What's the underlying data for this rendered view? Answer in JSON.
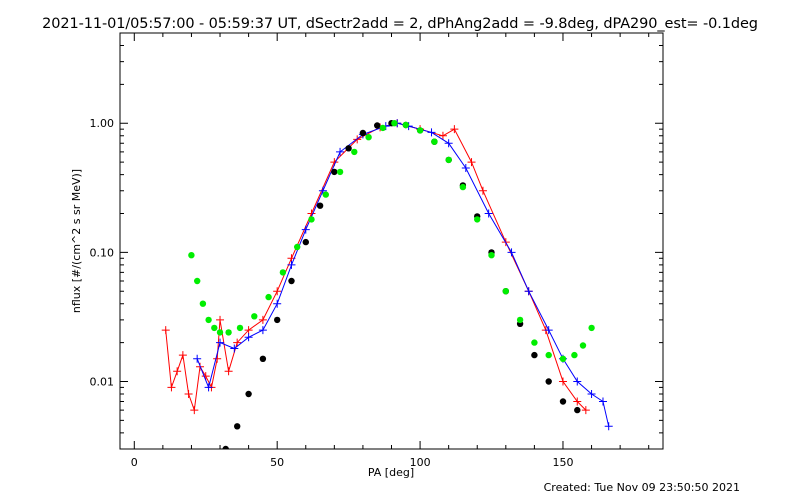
{
  "title": "2021-11-01/05:57:00 - 05:59:37 UT, dSectr2add = 2, dPhAng2add = -9.8deg, dPA290_est= -0.1deg",
  "footer": "Created: Tue Nov 09 23:50:50 2021",
  "colors": {
    "red_series": "#ff0000",
    "blue_series": "#0000ff",
    "black_fit": "#000000",
    "green_fit": "#00ee00"
  },
  "chart_data": {
    "type": "line",
    "title": "2021-11-01/05:57:00 - 05:59:37 UT, dSectr2add = 2, dPhAng2add = -9.8deg, dPA290_est= -0.1deg",
    "xlabel": "PA [deg]",
    "ylabel": "nflux [#/(cm^2 s sr MeV)]",
    "xlim": [
      -5,
      185
    ],
    "ylim": [
      0.003,
      5
    ],
    "yscale": "log",
    "x_ticks": [
      0,
      50,
      100,
      150
    ],
    "x_tick_labels": [
      "0",
      "50",
      "100",
      "150"
    ],
    "y_ticks": [
      0.01,
      0.1,
      1.0
    ],
    "y_tick_labels": [
      "0.01",
      "0.10",
      "1.00"
    ],
    "grid": false,
    "series": [
      {
        "color": "red",
        "marker": "+",
        "points": [
          [
            11,
            0.025
          ],
          [
            13,
            0.009
          ],
          [
            15,
            0.012
          ],
          [
            17,
            0.016
          ],
          [
            19,
            0.008
          ],
          [
            21,
            0.006
          ],
          [
            23,
            0.013
          ],
          [
            25,
            0.011
          ],
          [
            27,
            0.009
          ],
          [
            29,
            0.015
          ],
          [
            30,
            0.03
          ],
          [
            33,
            0.012
          ],
          [
            36,
            0.02
          ],
          [
            40,
            0.025
          ],
          [
            45,
            0.03
          ],
          [
            50,
            0.05
          ],
          [
            55,
            0.09
          ],
          [
            62,
            0.2
          ],
          [
            70,
            0.5
          ],
          [
            78,
            0.75
          ],
          [
            86,
            0.93
          ],
          [
            92,
            1.0
          ],
          [
            100,
            0.9
          ],
          [
            108,
            0.8
          ],
          [
            112,
            0.9
          ],
          [
            118,
            0.5
          ],
          [
            122,
            0.3
          ],
          [
            130,
            0.12
          ],
          [
            138,
            0.05
          ],
          [
            144,
            0.025
          ],
          [
            150,
            0.01
          ],
          [
            155,
            0.007
          ],
          [
            158,
            0.006
          ]
        ]
      },
      {
        "color": "blue",
        "marker": "+",
        "points": [
          [
            22,
            0.015
          ],
          [
            26,
            0.009
          ],
          [
            30,
            0.02
          ],
          [
            35,
            0.018
          ],
          [
            40,
            0.022
          ],
          [
            45,
            0.025
          ],
          [
            50,
            0.04
          ],
          [
            55,
            0.08
          ],
          [
            60,
            0.15
          ],
          [
            66,
            0.3
          ],
          [
            72,
            0.6
          ],
          [
            80,
            0.82
          ],
          [
            88,
            0.95
          ],
          [
            92,
            1.0
          ],
          [
            96,
            0.95
          ],
          [
            104,
            0.85
          ],
          [
            110,
            0.7
          ],
          [
            116,
            0.45
          ],
          [
            124,
            0.2
          ],
          [
            132,
            0.1
          ],
          [
            138,
            0.05
          ],
          [
            145,
            0.025
          ],
          [
            150,
            0.015
          ],
          [
            155,
            0.01
          ],
          [
            160,
            0.008
          ],
          [
            164,
            0.007
          ],
          [
            166,
            0.0045
          ]
        ]
      },
      {
        "color": "black",
        "marker": "circle",
        "points": [
          [
            32,
            0.003
          ],
          [
            36,
            0.0045
          ],
          [
            40,
            0.008
          ],
          [
            45,
            0.015
          ],
          [
            50,
            0.03
          ],
          [
            55,
            0.06
          ],
          [
            60,
            0.12
          ],
          [
            65,
            0.23
          ],
          [
            70,
            0.42
          ],
          [
            75,
            0.64
          ],
          [
            80,
            0.84
          ],
          [
            85,
            0.96
          ],
          [
            90,
            1.0
          ],
          [
            95,
            0.97
          ],
          [
            100,
            0.88
          ],
          [
            105,
            0.72
          ],
          [
            110,
            0.52
          ],
          [
            115,
            0.33
          ],
          [
            120,
            0.19
          ],
          [
            125,
            0.1
          ],
          [
            130,
            0.05
          ],
          [
            135,
            0.028
          ],
          [
            140,
            0.016
          ],
          [
            145,
            0.01
          ],
          [
            150,
            0.007
          ],
          [
            155,
            0.006
          ]
        ]
      },
      {
        "color": "green",
        "marker": "circle",
        "points": [
          [
            20,
            0.095
          ],
          [
            22,
            0.06
          ],
          [
            24,
            0.04
          ],
          [
            26,
            0.03
          ],
          [
            28,
            0.026
          ],
          [
            30,
            0.024
          ],
          [
            33,
            0.024
          ],
          [
            37,
            0.026
          ],
          [
            42,
            0.032
          ],
          [
            47,
            0.045
          ],
          [
            52,
            0.07
          ],
          [
            57,
            0.11
          ],
          [
            62,
            0.18
          ],
          [
            67,
            0.28
          ],
          [
            72,
            0.42
          ],
          [
            77,
            0.6
          ],
          [
            82,
            0.78
          ],
          [
            87,
            0.92
          ],
          [
            91,
            1.0
          ],
          [
            95,
            0.97
          ],
          [
            100,
            0.88
          ],
          [
            105,
            0.72
          ],
          [
            110,
            0.52
          ],
          [
            115,
            0.32
          ],
          [
            120,
            0.18
          ],
          [
            125,
            0.095
          ],
          [
            130,
            0.05
          ],
          [
            135,
            0.03
          ],
          [
            140,
            0.02
          ],
          [
            145,
            0.016
          ],
          [
            150,
            0.015
          ],
          [
            154,
            0.016
          ],
          [
            157,
            0.019
          ],
          [
            160,
            0.026
          ]
        ]
      }
    ]
  }
}
